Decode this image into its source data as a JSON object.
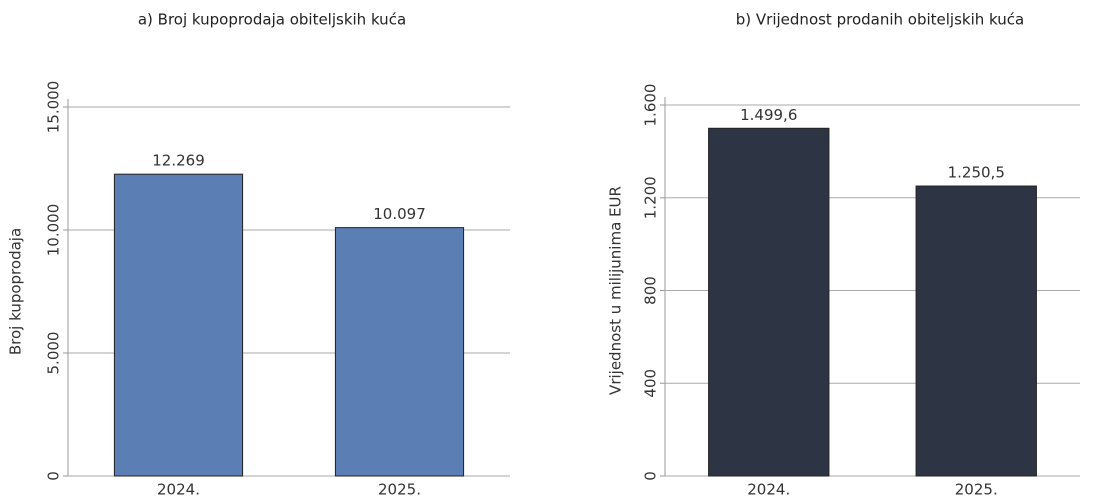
{
  "chart_data": [
    {
      "type": "bar",
      "title": "a) Broj kupoprodaja obiteljskih kuća",
      "y_label": "Broj kupoprodaja",
      "categories": [
        "2024.",
        "2025."
      ],
      "values": [
        12269,
        10097
      ],
      "value_labels": [
        "12.269",
        "10.097"
      ],
      "color": "#5b7fb4",
      "ylim": [
        0,
        15000
      ],
      "yticks": [
        0,
        {
          "value": 5000,
          "label": "5.000"
        },
        {
          "value": 10000,
          "label": "10.000"
        },
        {
          "value": 15000,
          "label": "15.000"
        }
      ],
      "grid": true
    },
    {
      "type": "bar",
      "title": "b) Vrijednost prodanih obiteljskih kuća",
      "y_label": "Vrijednost u milijunima EUR",
      "categories": [
        "2024.",
        "2025."
      ],
      "values": [
        1499.6,
        1250.5
      ],
      "value_labels": [
        "1.499,6",
        "1.250,5"
      ],
      "color": "#2d3545",
      "ylim": [
        0,
        1600
      ],
      "yticks": [
        0,
        400,
        800,
        {
          "value": 1200,
          "label": "1.200"
        },
        {
          "value": 1600,
          "label": "1.600"
        }
      ],
      "grid": true
    }
  ]
}
